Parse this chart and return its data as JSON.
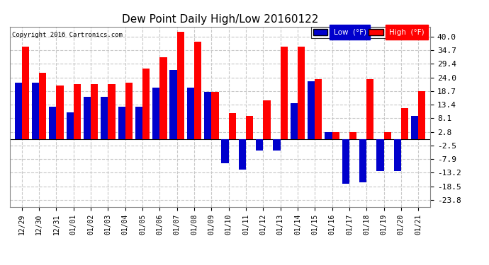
{
  "title": "Dew Point Daily High/Low 20160122",
  "copyright": "Copyright 2016 Cartronics.com",
  "categories": [
    "12/29",
    "12/30",
    "12/31",
    "01/01",
    "01/02",
    "01/03",
    "01/04",
    "01/05",
    "01/06",
    "01/07",
    "01/08",
    "01/09",
    "01/10",
    "01/11",
    "01/12",
    "01/13",
    "01/14",
    "01/15",
    "01/16",
    "01/17",
    "01/18",
    "01/19",
    "01/20",
    "01/21"
  ],
  "high": [
    36.0,
    26.0,
    21.0,
    21.5,
    21.5,
    21.5,
    22.0,
    27.5,
    32.0,
    42.0,
    38.0,
    18.5,
    10.0,
    9.0,
    15.0,
    36.0,
    36.0,
    23.5,
    2.8,
    2.8,
    23.5,
    2.8,
    12.0,
    18.7
  ],
  "low": [
    22.0,
    22.0,
    12.5,
    10.5,
    16.5,
    16.5,
    12.5,
    12.5,
    20.0,
    27.0,
    20.0,
    18.5,
    -9.5,
    -12.0,
    -4.5,
    -4.5,
    14.0,
    22.5,
    2.8,
    -17.5,
    -17.0,
    -12.5,
    -12.5,
    9.0
  ],
  "high_color": "#ff0000",
  "low_color": "#0000cc",
  "bg_color": "#ffffff",
  "grid_color": "#c8c8c8",
  "yticks": [
    40.0,
    34.7,
    29.4,
    24.0,
    18.7,
    13.4,
    8.1,
    2.8,
    -2.5,
    -7.9,
    -13.2,
    -18.5,
    -23.8
  ],
  "ylim": [
    -26.5,
    44.0
  ],
  "bar_width": 0.42,
  "legend_low_label": "Low  (°F)",
  "legend_high_label": "High  (°F)"
}
